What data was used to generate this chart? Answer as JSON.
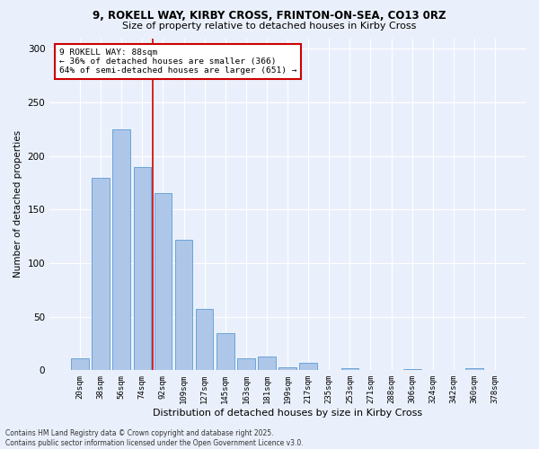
{
  "title_line1": "9, ROKELL WAY, KIRBY CROSS, FRINTON-ON-SEA, CO13 0RZ",
  "title_line2": "Size of property relative to detached houses in Kirby Cross",
  "xlabel": "Distribution of detached houses by size in Kirby Cross",
  "ylabel": "Number of detached properties",
  "bar_labels": [
    "20sqm",
    "38sqm",
    "56sqm",
    "74sqm",
    "92sqm",
    "109sqm",
    "127sqm",
    "145sqm",
    "163sqm",
    "181sqm",
    "199sqm",
    "217sqm",
    "235sqm",
    "253sqm",
    "271sqm",
    "288sqm",
    "306sqm",
    "324sqm",
    "342sqm",
    "360sqm",
    "378sqm"
  ],
  "bar_values": [
    11,
    180,
    225,
    190,
    165,
    122,
    57,
    35,
    11,
    13,
    3,
    7,
    0,
    2,
    0,
    0,
    1,
    0,
    0,
    2,
    0
  ],
  "bar_color": "#aec6e8",
  "bar_edge_color": "#5b9bd5",
  "background_color": "#eaf0fb",
  "grid_color": "#ffffff",
  "annotation_text": "9 ROKELL WAY: 88sqm\n← 36% of detached houses are smaller (366)\n64% of semi-detached houses are larger (651) →",
  "annotation_box_color": "#ffffff",
  "annotation_box_edge": "#cc0000",
  "vline_color": "#cc0000",
  "vline_pos": 3.5,
  "ylim": [
    0,
    310
  ],
  "yticks": [
    0,
    50,
    100,
    150,
    200,
    250,
    300
  ],
  "footer": "Contains HM Land Registry data © Crown copyright and database right 2025.\nContains public sector information licensed under the Open Government Licence v3.0."
}
